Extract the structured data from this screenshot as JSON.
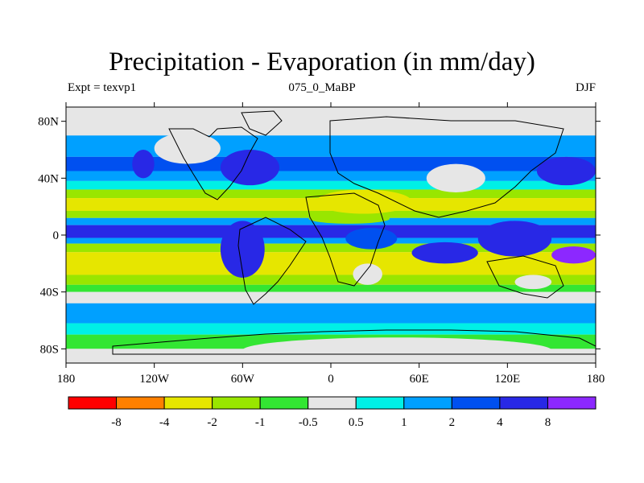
{
  "title": "Precipitation - Evaporation (in mm/day)",
  "subtitle_left": "Expt = texvp1",
  "subtitle_center": "075_0_MaBP",
  "subtitle_right": "DJF",
  "axes": {
    "x_ticks": [
      "180",
      "120W",
      "60W",
      "0",
      "60E",
      "120E",
      "180"
    ],
    "y_ticks": [
      "80N",
      "40N",
      "0",
      "40S",
      "80S"
    ],
    "lon_range": [
      -180,
      180
    ],
    "lat_range": [
      -90,
      90
    ]
  },
  "colorbar": {
    "labels": [
      "-8",
      "-4",
      "-2",
      "-1",
      "-0.5",
      "0.5",
      "1",
      "2",
      "4",
      "8"
    ],
    "colors": [
      "#ff0000",
      "#ff8000",
      "#e6e600",
      "#99e600",
      "#33e633",
      "#e6e6e6",
      "#00f0e6",
      "#00a0ff",
      "#0050f0",
      "#2828e6",
      "#8c28ff"
    ]
  },
  "chart_data": {
    "type": "map",
    "field": "P - E",
    "units": "mm/day",
    "season": "DJF",
    "projection": "cylindrical equidistant",
    "levels": [
      -8,
      -4,
      -2,
      -1,
      -0.5,
      0.5,
      1,
      2,
      4,
      8
    ],
    "zonal_bands": [
      {
        "lat_range": [
          70,
          90
        ],
        "value": 0
      },
      {
        "lat_range": [
          55,
          70
        ],
        "value": 1.5
      },
      {
        "lat_range": [
          45,
          55
        ],
        "value": 3
      },
      {
        "lat_range": [
          38,
          45
        ],
        "value": 1.5
      },
      {
        "lat_range": [
          32,
          38
        ],
        "value": 0.7
      },
      {
        "lat_range": [
          26,
          32
        ],
        "value": -1.5
      },
      {
        "lat_range": [
          17,
          26
        ],
        "value": -3
      },
      {
        "lat_range": [
          12,
          17
        ],
        "value": -1.5
      },
      {
        "lat_range": [
          7,
          12
        ],
        "value": 1.5
      },
      {
        "lat_range": [
          -2,
          7
        ],
        "value": 5
      },
      {
        "lat_range": [
          -6,
          -2
        ],
        "value": 1.5
      },
      {
        "lat_range": [
          -12,
          -6
        ],
        "value": -1.5
      },
      {
        "lat_range": [
          -28,
          -12
        ],
        "value": -2.5
      },
      {
        "lat_range": [
          -35,
          -28
        ],
        "value": -1.5
      },
      {
        "lat_range": [
          -40,
          -35
        ],
        "value": -0.7
      },
      {
        "lat_range": [
          -48,
          -40
        ],
        "value": 0
      },
      {
        "lat_range": [
          -62,
          -48
        ],
        "value": 1.5
      },
      {
        "lat_range": [
          -70,
          -62
        ],
        "value": 0.7
      },
      {
        "lat_range": [
          -80,
          -70
        ],
        "value": -0.7
      },
      {
        "lat_range": [
          -90,
          -80
        ],
        "value": 0
      }
    ],
    "features": [
      {
        "name": "central Asia",
        "lon_range": [
          65,
          105
        ],
        "lat_range": [
          30,
          50
        ],
        "value": 0
      },
      {
        "name": "Sahara / Arabia",
        "lon_range": [
          -10,
          55
        ],
        "lat_range": [
          15,
          32
        ],
        "value": -3
      },
      {
        "name": "north Africa",
        "lon_range": [
          -15,
          40
        ],
        "lat_range": [
          8,
          15
        ],
        "value": -1.5
      },
      {
        "name": "equatorial Africa",
        "lon_range": [
          10,
          45
        ],
        "lat_range": [
          -10,
          5
        ],
        "value": 3
      },
      {
        "name": "southern Africa",
        "lon_range": [
          15,
          35
        ],
        "lat_range": [
          -35,
          -20
        ],
        "value": 0
      },
      {
        "name": "South America",
        "lon_range": [
          -75,
          -45
        ],
        "lat_range": [
          -30,
          10
        ],
        "value": 4
      },
      {
        "name": "Indian Ocean",
        "lon_range": [
          55,
          100
        ],
        "lat_range": [
          -20,
          -5
        ],
        "value": 5
      },
      {
        "name": "Maritime continent",
        "lon_range": [
          100,
          150
        ],
        "lat_range": [
          -15,
          10
        ],
        "value": 5
      },
      {
        "name": "SPCZ",
        "lon_range": [
          150,
          180
        ],
        "lat_range": [
          -20,
          -8
        ],
        "value": 9
      },
      {
        "name": "NW Pacific storm track",
        "lon_range": [
          140,
          180
        ],
        "lat_range": [
          35,
          55
        ],
        "value": 5
      },
      {
        "name": "NW Atlantic storm track",
        "lon_range": [
          -75,
          -35
        ],
        "lat_range": [
          35,
          60
        ],
        "value": 5
      },
      {
        "name": "North America west coast",
        "lon_range": [
          -135,
          -120
        ],
        "lat_range": [
          40,
          60
        ],
        "value": 5
      },
      {
        "name": "Canada interior",
        "lon_range": [
          -120,
          -75
        ],
        "lat_range": [
          50,
          72
        ],
        "value": 0
      },
      {
        "name": "southern Australia",
        "lon_range": [
          125,
          150
        ],
        "lat_range": [
          -38,
          -28
        ],
        "value": 0
      },
      {
        "name": "Antarctica",
        "lon_range": [
          -60,
          150
        ],
        "lat_range": [
          -90,
          -72
        ],
        "value": 0
      }
    ]
  }
}
